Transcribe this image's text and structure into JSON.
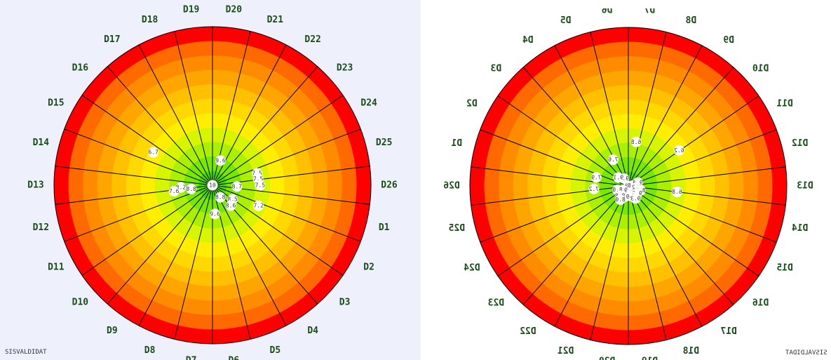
{
  "watermark": "SISVALDIDAT",
  "ring_colors": [
    "#44dd00",
    "#77e800",
    "#aaf000",
    "#d8f500",
    "#ffee00",
    "#ffd800",
    "#ffc000",
    "#ffa500",
    "#ff8c00",
    "#ff6a00",
    "#ff0000"
  ],
  "chart_data": [
    {
      "type": "polar-scatter",
      "mirrored": false,
      "sectors": [
        "D1",
        "D2",
        "D3",
        "D4",
        "D5",
        "D6",
        "D7",
        "D8",
        "D9",
        "D10",
        "D11",
        "D12",
        "D13",
        "D14",
        "D15",
        "D16",
        "D17",
        "D18",
        "D19",
        "D20",
        "D21",
        "D22",
        "D23",
        "D24",
        "D25",
        "D26"
      ],
      "rings": 11,
      "points": [
        {
          "label": "10",
          "r": 0,
          "a": 0
        },
        {
          "label": "9.6",
          "r": 2,
          "a": 275
        },
        {
          "label": "7.5",
          "r": 3.2,
          "a": 15
        },
        {
          "label": "7.5",
          "r": 3.2,
          "a": 8
        },
        {
          "label": "7.5",
          "r": 3.3,
          "a": 0
        },
        {
          "label": "8.7",
          "r": 1.7,
          "a": 357
        },
        {
          "label": "8.8",
          "r": 1,
          "a": 303
        },
        {
          "label": "8.5",
          "r": 1.7,
          "a": 325
        },
        {
          "label": "8.6",
          "r": 1.9,
          "a": 312
        },
        {
          "label": "7.2",
          "r": 3.5,
          "a": 336
        },
        {
          "label": "8.2",
          "r": 2.2,
          "a": 184
        },
        {
          "label": "8.8",
          "r": 1.5,
          "a": 190
        },
        {
          "label": "7.6",
          "r": 2.7,
          "a": 189
        },
        {
          "label": "6.7",
          "r": 4.7,
          "a": 151
        },
        {
          "label": "9.6",
          "r": 1.8,
          "a": 72
        }
      ]
    },
    {
      "type": "polar-scatter",
      "mirrored": true,
      "sectors": [
        "D1",
        "D2",
        "D3",
        "D4",
        "D5",
        "D6",
        "D7",
        "D8",
        "D9",
        "D10",
        "D11",
        "D12",
        "D13",
        "D14",
        "D15",
        "D16",
        "D17",
        "D18",
        "D19",
        "D20",
        "D21",
        "D22",
        "D23",
        "D24",
        "D25",
        "D26"
      ],
      "rings": 11,
      "points": [
        {
          "label": "10",
          "r": 0,
          "a": 0
        },
        {
          "label": "6.8",
          "r": 3.4,
          "a": 353
        },
        {
          "label": "6.2",
          "r": 4.3,
          "a": 35
        },
        {
          "label": "9.8",
          "r": 0.3,
          "a": 5
        },
        {
          "label": "9.4",
          "r": 0.7,
          "a": 20
        },
        {
          "label": "9.2",
          "r": 0.6,
          "a": 350
        },
        {
          "label": "8.7",
          "r": 0.9,
          "a": 340
        },
        {
          "label": "9.6",
          "r": 0.8,
          "a": 320
        },
        {
          "label": "9.5",
          "r": 0.9,
          "a": 300
        },
        {
          "label": "9.4",
          "r": 0.7,
          "a": 280
        },
        {
          "label": "9.0",
          "r": 0.8,
          "a": 250
        },
        {
          "label": "9.4",
          "r": 0.5,
          "a": 215
        },
        {
          "label": "9.3",
          "r": 0.6,
          "a": 120
        },
        {
          "label": "6.8",
          "r": 3.1,
          "a": 80
        },
        {
          "label": "7.6",
          "r": 2.1,
          "a": 120
        },
        {
          "label": "7.9",
          "r": 2.3,
          "a": 165
        },
        {
          "label": "7.2",
          "r": 2.4,
          "a": 185
        },
        {
          "label": "8.0",
          "r": 0.8,
          "a": 200
        },
        {
          "label": "9.1",
          "r": 0.9,
          "a": 140
        },
        {
          "label": "8.8",
          "r": 0.9,
          "a": 230
        },
        {
          "label": "8.0",
          "r": 1.1,
          "a": 240
        },
        {
          "label": "9.3",
          "r": 1,
          "a": 300
        }
      ]
    }
  ]
}
